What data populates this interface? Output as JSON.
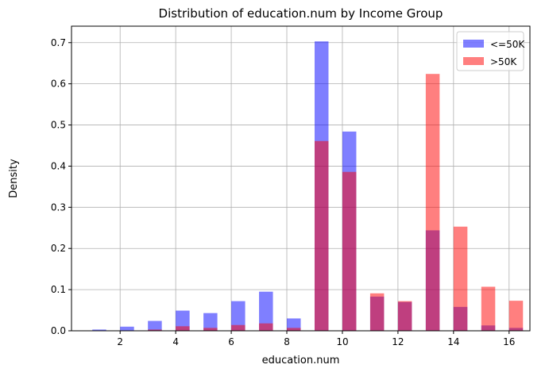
{
  "chart_data": {
    "type": "bar",
    "title": "Distribution of education.num by Income Group",
    "xlabel": "education.num",
    "ylabel": "Density",
    "xlim": [
      0.25,
      16.75
    ],
    "ylim": [
      0,
      0.74
    ],
    "xticks": [
      2,
      4,
      6,
      8,
      10,
      12,
      14,
      16
    ],
    "yticks": [
      0.0,
      0.1,
      0.2,
      0.3,
      0.4,
      0.5,
      0.6,
      0.7
    ],
    "grid": true,
    "legend_position": "top-right",
    "bin_width": 0.5,
    "series": [
      {
        "name": "<=50K",
        "color": "#0000ff",
        "opacity": 0.5,
        "bins": [
          {
            "x": 1.25,
            "value": 0.003
          },
          {
            "x": 2.25,
            "value": 0.01
          },
          {
            "x": 3.25,
            "value": 0.024
          },
          {
            "x": 4.25,
            "value": 0.049
          },
          {
            "x": 5.25,
            "value": 0.043
          },
          {
            "x": 6.25,
            "value": 0.072
          },
          {
            "x": 7.25,
            "value": 0.095
          },
          {
            "x": 8.25,
            "value": 0.03
          },
          {
            "x": 9.25,
            "value": 0.703
          },
          {
            "x": 10.25,
            "value": 0.484
          },
          {
            "x": 11.25,
            "value": 0.083
          },
          {
            "x": 12.25,
            "value": 0.07
          },
          {
            "x": 13.25,
            "value": 0.244
          },
          {
            "x": 14.25,
            "value": 0.058
          },
          {
            "x": 15.25,
            "value": 0.013
          },
          {
            "x": 16.25,
            "value": 0.007
          }
        ]
      },
      {
        "name": ">50K",
        "color": "#ff0000",
        "opacity": 0.5,
        "bins": [
          {
            "x": 3.25,
            "value": 0.003
          },
          {
            "x": 4.25,
            "value": 0.011
          },
          {
            "x": 5.25,
            "value": 0.007
          },
          {
            "x": 6.25,
            "value": 0.014
          },
          {
            "x": 7.25,
            "value": 0.018
          },
          {
            "x": 8.25,
            "value": 0.007
          },
          {
            "x": 9.25,
            "value": 0.461
          },
          {
            "x": 10.25,
            "value": 0.386
          },
          {
            "x": 11.25,
            "value": 0.091
          },
          {
            "x": 12.25,
            "value": 0.072
          },
          {
            "x": 13.25,
            "value": 0.624
          },
          {
            "x": 14.25,
            "value": 0.253
          },
          {
            "x": 15.25,
            "value": 0.107
          },
          {
            "x": 16.25,
            "value": 0.073
          }
        ]
      }
    ]
  }
}
